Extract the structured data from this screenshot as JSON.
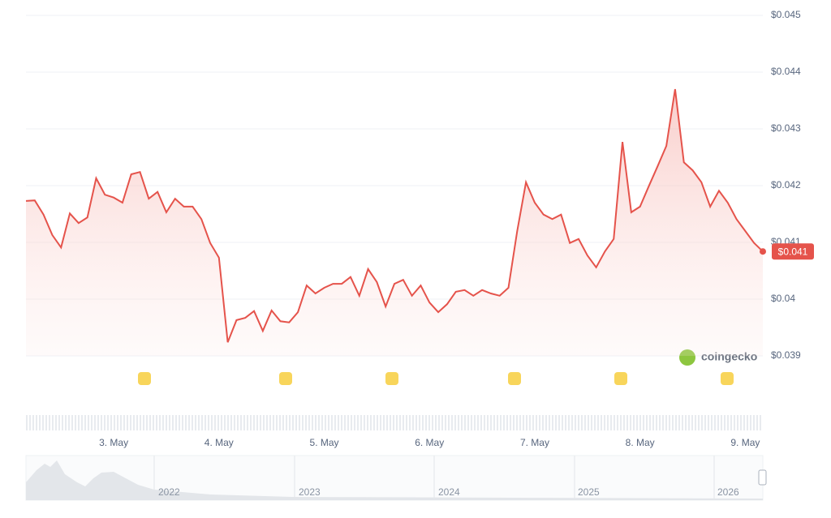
{
  "chart_data": {
    "type": "line",
    "categories": [
      null,
      null,
      null,
      null,
      null,
      null,
      null,
      null,
      null,
      null,
      "3. May",
      null,
      null,
      null,
      null,
      null,
      null,
      null,
      null,
      null,
      null,
      null,
      "4. May",
      null,
      null,
      null,
      null,
      null,
      null,
      null,
      null,
      null,
      null,
      null,
      "5. May",
      null,
      null,
      null,
      null,
      null,
      null,
      null,
      null,
      null,
      null,
      null,
      "6. May",
      null,
      null,
      null,
      null,
      null,
      null,
      null,
      null,
      null,
      null,
      null,
      "7. May",
      null,
      null,
      null,
      null,
      null,
      null,
      null,
      null,
      null,
      null,
      null,
      "8. May",
      null,
      null,
      null,
      null,
      null,
      null,
      null,
      null,
      null,
      null,
      null,
      "9. May",
      null,
      null
    ],
    "series": [
      {
        "color": "#e5534b",
        "values": [
          0.04173,
          0.04174,
          0.04149,
          0.04113,
          0.04091,
          0.04151,
          0.04134,
          0.04144,
          0.04213,
          0.04184,
          0.04179,
          0.0417,
          0.0422,
          0.04224,
          0.04177,
          0.04189,
          0.04153,
          0.04177,
          0.04163,
          0.04163,
          0.04141,
          0.04099,
          0.04073,
          0.03924,
          0.03963,
          0.03967,
          0.03979,
          0.03944,
          0.0398,
          0.03961,
          0.03959,
          0.03977,
          0.04024,
          0.0401,
          0.0402,
          0.04027,
          0.04027,
          0.04039,
          0.04006,
          0.04053,
          0.0403,
          0.03987,
          0.04027,
          0.04034,
          0.04006,
          0.04024,
          0.03994,
          0.03977,
          0.03991,
          0.04013,
          0.04016,
          0.04006,
          0.04016,
          0.0401,
          0.04006,
          0.0402,
          0.0412,
          0.04206,
          0.0417,
          0.04149,
          0.04141,
          0.04149,
          0.04099,
          0.04106,
          0.04077,
          0.04056,
          0.04084,
          0.04106,
          0.04277,
          0.04153,
          0.04163,
          0.04199,
          0.04234,
          0.0427,
          0.0437,
          0.04241,
          0.04227,
          0.04206,
          0.04163,
          0.04191,
          0.0417,
          0.04141,
          0.0412,
          0.04099,
          0.04084
        ],
        "value_labels": [
          null,
          null,
          null,
          null,
          null,
          null,
          null,
          null,
          null,
          null,
          null,
          null,
          null,
          null,
          null,
          null,
          null,
          null,
          null,
          null,
          null,
          null,
          null,
          null,
          null,
          null,
          null,
          null,
          null,
          null,
          null,
          null,
          null,
          null,
          null,
          null,
          null,
          null,
          null,
          null,
          null,
          null,
          null,
          null,
          null,
          null,
          null,
          null,
          null,
          null,
          null,
          null,
          null,
          null,
          null,
          null,
          null,
          null,
          null,
          null,
          null,
          null,
          null,
          null,
          null,
          null,
          null,
          null,
          null,
          null,
          null,
          null,
          null,
          null,
          null,
          null,
          null,
          null,
          null,
          null,
          null,
          null,
          null,
          null,
          "$0.041"
        ]
      }
    ],
    "ylim": [
      0.039,
      0.045
    ],
    "yticks": [
      {
        "value": 0.039,
        "label": "$0.039"
      },
      {
        "value": 0.04,
        "label": "$0.04"
      },
      {
        "value": 0.041,
        "label": "$0.041"
      },
      {
        "value": 0.042,
        "label": "$0.042"
      },
      {
        "value": 0.043,
        "label": "$0.043"
      },
      {
        "value": 0.044,
        "label": "$0.044"
      },
      {
        "value": 0.045,
        "label": "$0.045"
      }
    ],
    "grid": true,
    "watermark": "coingecko",
    "navigator_labels": [
      "2022",
      "2023",
      "2024",
      "2025",
      "2026"
    ]
  }
}
